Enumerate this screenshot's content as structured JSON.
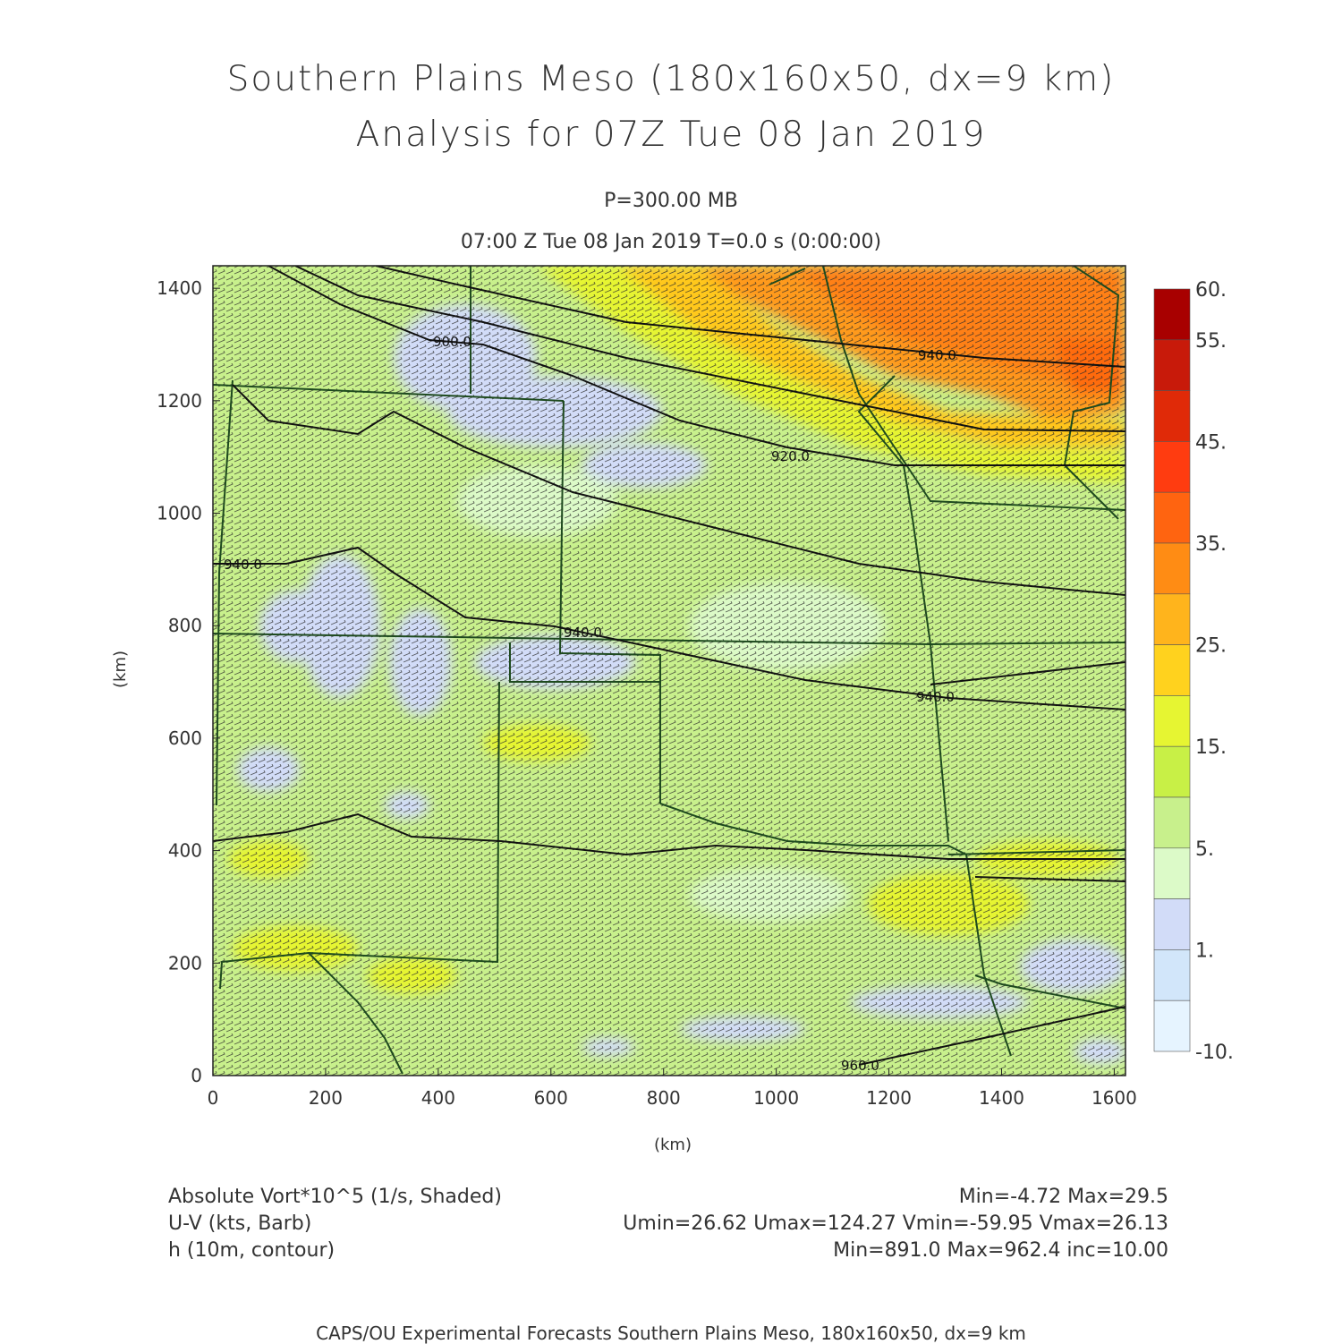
{
  "header": {
    "title_line1": "Southern Plains Meso (180x160x50, dx=9 km)",
    "title_line2": "Analysis for 07Z Tue 08 Jan 2019",
    "pressure_level": "P=300.00 MB",
    "valid_time": "07:00 Z Tue 08 Jan 2019    T=0.0 s (0:00:00)"
  },
  "axes": {
    "x_unit_label": "(km)",
    "y_unit_label": "(km)",
    "x_ticks": [
      "0",
      "200",
      "400",
      "600",
      "800",
      "1000",
      "1200",
      "1400",
      "1600"
    ],
    "y_ticks": [
      "0",
      "200",
      "400",
      "600",
      "800",
      "1000",
      "1200",
      "1400"
    ],
    "x_range": [
      0,
      1620
    ],
    "y_range": [
      0,
      1440
    ]
  },
  "colorbar": {
    "labels": [
      "60.",
      "55.",
      "45.",
      "35.",
      "25.",
      "15.",
      "5.",
      "1.",
      "-10."
    ],
    "colors": [
      "#a80000",
      "#c81a0a",
      "#e02a08",
      "#ff3c10",
      "#ff6410",
      "#ff8c14",
      "#ffb41c",
      "#ffd21e",
      "#e6f532",
      "#c8f046",
      "#c8f08c",
      "#dcfac8",
      "#d2dcf8",
      "#d2e6fa",
      "#e6f4ff"
    ]
  },
  "contour_labels": [
    "900.0",
    "920.0",
    "940.0",
    "940.0",
    "940.0",
    "940.0",
    "960.0",
    "900.0"
  ],
  "footer": {
    "field1_name": "Absolute Vort*10^5 (1/s, Shaded)",
    "field1_stats": "Min=-4.72 Max=29.5",
    "field2_name": "U-V (kts, Barb)",
    "field2_stats": "Umin=26.62 Umax=124.27 Vmin=-59.95 Vmax=26.13",
    "field3_name": "h (10m, contour)",
    "field3_stats": "Min=891.0 Max=962.4 inc=10.00",
    "credit": "CAPS/OU Experimental Forecasts  Southern Plains Meso, 180x160x50, dx=9 km"
  }
}
